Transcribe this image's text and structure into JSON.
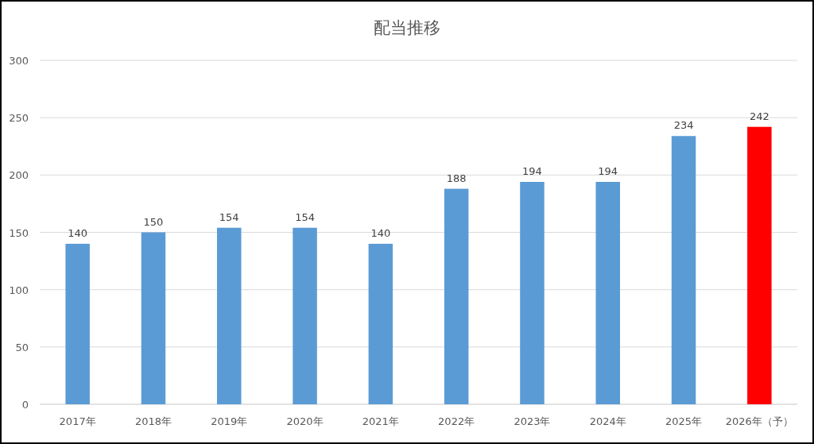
{
  "chart_data": {
    "type": "bar",
    "title": "配当推移",
    "categories": [
      "2017年",
      "2018年",
      "2019年",
      "2020年",
      "2021年",
      "2022年",
      "2023年",
      "2024年",
      "2025年",
      "2026年（予）"
    ],
    "values": [
      140,
      150,
      154,
      154,
      140,
      188,
      194,
      194,
      234,
      242
    ],
    "colors": [
      "#5b9bd5",
      "#5b9bd5",
      "#5b9bd5",
      "#5b9bd5",
      "#5b9bd5",
      "#5b9bd5",
      "#5b9bd5",
      "#5b9bd5",
      "#5b9bd5",
      "#ff0000"
    ],
    "ylim": [
      0,
      300
    ],
    "yticks": [
      0,
      50,
      100,
      150,
      200,
      250,
      300
    ],
    "grid": "y",
    "data_labels": true
  }
}
